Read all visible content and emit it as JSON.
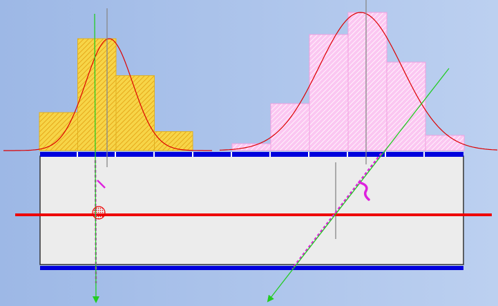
{
  "colors": {
    "bg_left": "#9db8e6",
    "bg_right": "#bcd0f0",
    "hist_left_fill": "#f7d548",
    "hist_left_hatch": "#e6a81a",
    "hist_right_fill": "#fbc6f1",
    "hist_right_hatch": "#ffffff",
    "curve": "#dd0000",
    "plate_fill": "#ececec",
    "plate_stroke": "#333333",
    "rail": "#0000dd",
    "rail_gap": "#ffffff",
    "red_line": "#ee0000",
    "green_ray": "#22cc22",
    "magenta": "#dd22dd",
    "gray_line": "#888888"
  },
  "histograms": {
    "left": [
      0.34,
      1.0,
      0.67,
      0.17
    ],
    "right": [
      0.05,
      0.34,
      0.84,
      1.0,
      0.64,
      0.11
    ]
  }
}
